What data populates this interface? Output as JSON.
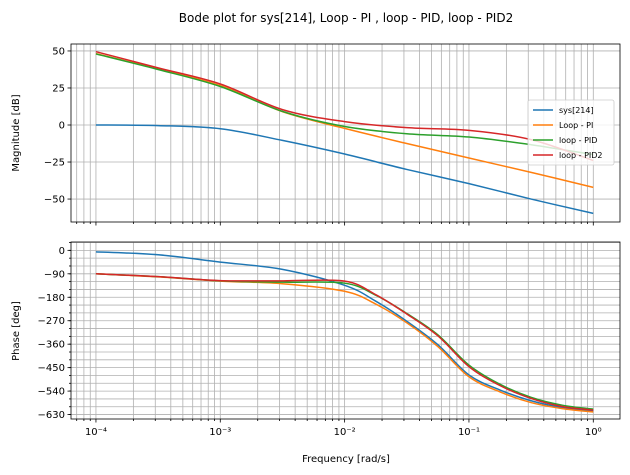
{
  "chart_data": {
    "type": "line",
    "title": "Bode plot for sys[214], Loop - PI , loop - PID, loop - PID2",
    "xlabel": "Frequency [rad/s]",
    "x_scale": "log",
    "xlim": [
      6.3e-05,
      1.64
    ],
    "x_tick_labels": [
      "10⁻⁴",
      "10⁻³",
      "10⁻²",
      "10⁻¹",
      "10⁰"
    ],
    "x_ticks": [
      0.0001,
      0.001,
      0.01,
      0.1,
      1
    ],
    "grid": true,
    "legend_position": "center-right",
    "colors": {
      "sys": "#1f77b4",
      "pi": "#ff7f0e",
      "pid": "#2ca02c",
      "pid2": "#d62728"
    },
    "panels": [
      {
        "name": "magnitude",
        "ylabel": "Magnitude [dB]",
        "ylim": [
          -65.5,
          54.7
        ],
        "y_ticks": [
          50,
          25,
          0,
          -25,
          -50
        ],
        "y_tick_labels": [
          "50",
          "25",
          "0",
          "−25",
          "−50"
        ],
        "x": [
          0.0001,
          0.000316,
          0.001,
          0.00316,
          0.01,
          0.0316,
          0.1,
          0.316,
          1
        ],
        "series": [
          {
            "name": "sys[214]",
            "color": "#1f77b4",
            "values": [
              0,
              -0.4,
              -2.5,
              -10.4,
              -19.6,
              -30,
              -39.6,
              -50,
              -59.7
            ]
          },
          {
            "name": "Loop - PI",
            "color": "#ff7f0e",
            "values": [
              48.2,
              37.8,
              26.6,
              9,
              -2.3,
              -12.5,
              -22.3,
              -32,
              -42.1
            ]
          },
          {
            "name": "loop - PID",
            "color": "#2ca02c",
            "values": [
              48,
              37.5,
              26,
              9.2,
              -1,
              -5.9,
              -8.1,
              -13.3,
              -20
            ]
          },
          {
            "name": "loop - PID2",
            "color": "#d62728",
            "values": [
              49.5,
              38.6,
              27.7,
              10.4,
              2.3,
              -1.8,
              -3.6,
              -9.9,
              -24
            ]
          }
        ]
      },
      {
        "name": "phase",
        "ylabel": "Phase [deg]",
        "ylim": [
          -647,
          32
        ],
        "y_ticks": [
          0,
          -90,
          -180,
          -270,
          -360,
          -450,
          -540,
          -630
        ],
        "y_tick_labels": [
          "0",
          "−90",
          "−180",
          "−270",
          "−360",
          "−450",
          "−540",
          "−630"
        ],
        "x": [
          0.0001,
          0.000316,
          0.001,
          0.00316,
          0.01,
          0.0178,
          0.0316,
          0.0562,
          0.1,
          0.178,
          0.316,
          0.562,
          1
        ],
        "series": [
          {
            "name": "sys[214]",
            "color": "#1f77b4",
            "values": [
              -5.7,
              -17,
              -45,
              -73,
              -134,
              -195,
              -272,
              -362,
              -478,
              -536,
              -577,
              -603,
              -616
            ]
          },
          {
            "name": "Loop - PI",
            "color": "#ff7f0e",
            "values": [
              -90,
              -102,
              -118,
              -128,
              -157,
              -206,
              -278,
              -369,
              -485,
              -543,
              -584,
              -607,
              -620
            ]
          },
          {
            "name": "loop - PID",
            "color": "#2ca02c",
            "values": [
              -90,
              -101,
              -117,
              -122,
              -126,
              -172,
              -242,
              -324,
              -440,
              -514,
              -564,
              -594,
              -609
            ]
          },
          {
            "name": "loop - PID2",
            "color": "#d62728",
            "values": [
              -90,
              -101,
              -116,
              -117,
              -118,
              -170,
              -244,
              -328,
              -446,
              -519,
              -568,
              -599,
              -613
            ]
          }
        ]
      }
    ]
  }
}
